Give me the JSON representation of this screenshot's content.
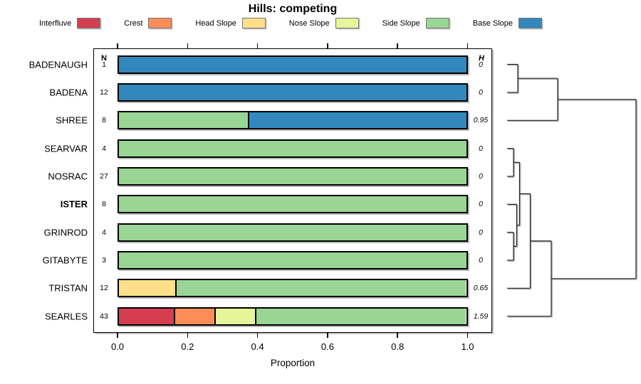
{
  "title": "Hills: competing",
  "legend": [
    {
      "label": "Interfluve",
      "color": "#d53e4f"
    },
    {
      "label": "Crest",
      "color": "#fc8d59"
    },
    {
      "label": "Head Slope",
      "color": "#fee08b"
    },
    {
      "label": "Nose Slope",
      "color": "#e6f598"
    },
    {
      "label": "Side Slope",
      "color": "#99d594"
    },
    {
      "label": "Base Slope",
      "color": "#3288bd"
    }
  ],
  "columns": {
    "n_header": "N",
    "h_header": "H"
  },
  "chart_data": {
    "type": "bar",
    "stacked": true,
    "orientation": "horizontal",
    "title": "Hills: competing",
    "xlabel": "Proportion",
    "xlim": [
      0.0,
      1.0
    ],
    "x_ticks": [
      "0.0",
      "0.2",
      "0.4",
      "0.6",
      "0.8",
      "1.0"
    ],
    "x_tick_values": [
      0.0,
      0.2,
      0.4,
      0.6,
      0.8,
      1.0
    ],
    "ticks_on_top_and_bottom": true,
    "legend_position": "top",
    "categories": [
      "Interfluve",
      "Crest",
      "Head Slope",
      "Nose Slope",
      "Side Slope",
      "Base Slope"
    ],
    "rows": [
      {
        "name": "BADENAUGH",
        "n": 1,
        "h": "0",
        "bold": false,
        "segments": [
          {
            "category": "Base Slope",
            "value": 1.0
          }
        ]
      },
      {
        "name": "BADENA",
        "n": 12,
        "h": "0",
        "bold": false,
        "segments": [
          {
            "category": "Base Slope",
            "value": 1.0
          }
        ]
      },
      {
        "name": "SHREE",
        "n": 8,
        "h": "0.95",
        "bold": false,
        "segments": [
          {
            "category": "Side Slope",
            "value": 0.375
          },
          {
            "category": "Base Slope",
            "value": 0.625
          }
        ]
      },
      {
        "name": "SEARVAR",
        "n": 4,
        "h": "0",
        "bold": false,
        "segments": [
          {
            "category": "Side Slope",
            "value": 1.0
          }
        ]
      },
      {
        "name": "NOSRAC",
        "n": 27,
        "h": "0",
        "bold": false,
        "segments": [
          {
            "category": "Side Slope",
            "value": 1.0
          }
        ]
      },
      {
        "name": "ISTER",
        "n": 8,
        "h": "0",
        "bold": true,
        "segments": [
          {
            "category": "Side Slope",
            "value": 1.0
          }
        ]
      },
      {
        "name": "GRINROD",
        "n": 4,
        "h": "0",
        "bold": false,
        "segments": [
          {
            "category": "Side Slope",
            "value": 1.0
          }
        ]
      },
      {
        "name": "GITABYTE",
        "n": 3,
        "h": "0",
        "bold": false,
        "segments": [
          {
            "category": "Side Slope",
            "value": 1.0
          }
        ]
      },
      {
        "name": "TRISTAN",
        "n": 12,
        "h": "0.65",
        "bold": false,
        "segments": [
          {
            "category": "Head Slope",
            "value": 0.167
          },
          {
            "category": "Side Slope",
            "value": 0.833
          }
        ]
      },
      {
        "name": "SEARLES",
        "n": 43,
        "h": "1.59",
        "bold": false,
        "segments": [
          {
            "category": "Interfluve",
            "value": 0.163
          },
          {
            "category": "Crest",
            "value": 0.116
          },
          {
            "category": "Nose Slope",
            "value": 0.116
          },
          {
            "category": "Side Slope",
            "value": 0.605
          }
        ]
      }
    ],
    "dendrogram": {
      "description": "hierarchical clustering tree on right side, leaves aligned to rows",
      "segments": [
        [
          712,
          90.5,
          727,
          90.5
        ],
        [
          712,
          130,
          727,
          130
        ],
        [
          727,
          90.5,
          727,
          130
        ],
        [
          727,
          110.2,
          783,
          110.2
        ],
        [
          712,
          169.3,
          783,
          169.3
        ],
        [
          783,
          110.2,
          783,
          169.3
        ],
        [
          783,
          139.8,
          893,
          139.8
        ],
        [
          712,
          208.7,
          721,
          208.7
        ],
        [
          712,
          248,
          721,
          248
        ],
        [
          721,
          208.7,
          721,
          248
        ],
        [
          721,
          228.3,
          729.5,
          228.3
        ],
        [
          712,
          287.3,
          725.5,
          287.3
        ],
        [
          712,
          326.7,
          721,
          326.7
        ],
        [
          712,
          366,
          721,
          366
        ],
        [
          721,
          326.7,
          721,
          366
        ],
        [
          721,
          346.3,
          725.5,
          346.3
        ],
        [
          725.5,
          287.3,
          725.5,
          346.3
        ],
        [
          725.5,
          316.8,
          729.5,
          316.8
        ],
        [
          729.5,
          228.3,
          729.5,
          316.8
        ],
        [
          729.5,
          272.5,
          744.5,
          272.5
        ],
        [
          712,
          405.3,
          744.5,
          405.3
        ],
        [
          744.5,
          272.5,
          744.5,
          405.3
        ],
        [
          744.5,
          338.9,
          774,
          338.9
        ],
        [
          712,
          444.7,
          774,
          444.7
        ],
        [
          774,
          338.9,
          774,
          444.7
        ],
        [
          774,
          391.8,
          893,
          391.8
        ],
        [
          893,
          139.8,
          893,
          391.8
        ]
      ]
    }
  }
}
